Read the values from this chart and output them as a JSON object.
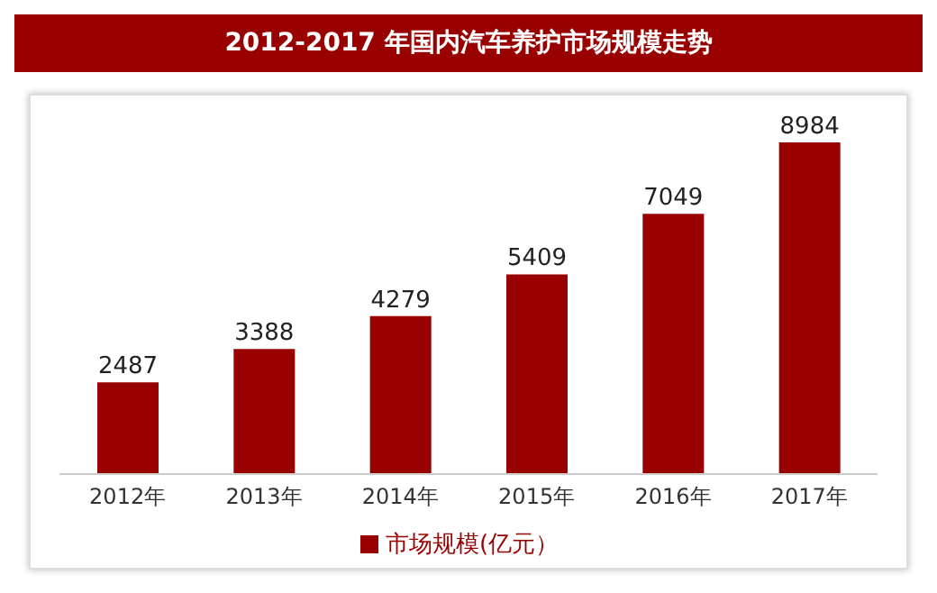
{
  "chart_data": {
    "type": "bar",
    "title": "2012-2017 年国内汽车养护市场规模走势",
    "categories": [
      "2012年",
      "2013年",
      "2014年",
      "2015年",
      "2016年",
      "2017年"
    ],
    "series": [
      {
        "name": "市场规模(亿元）",
        "color": "#990000",
        "values": [
          2487,
          3388,
          4279,
          5409,
          7049,
          8984
        ]
      }
    ],
    "data_labels": true,
    "legend": "bottom"
  }
}
